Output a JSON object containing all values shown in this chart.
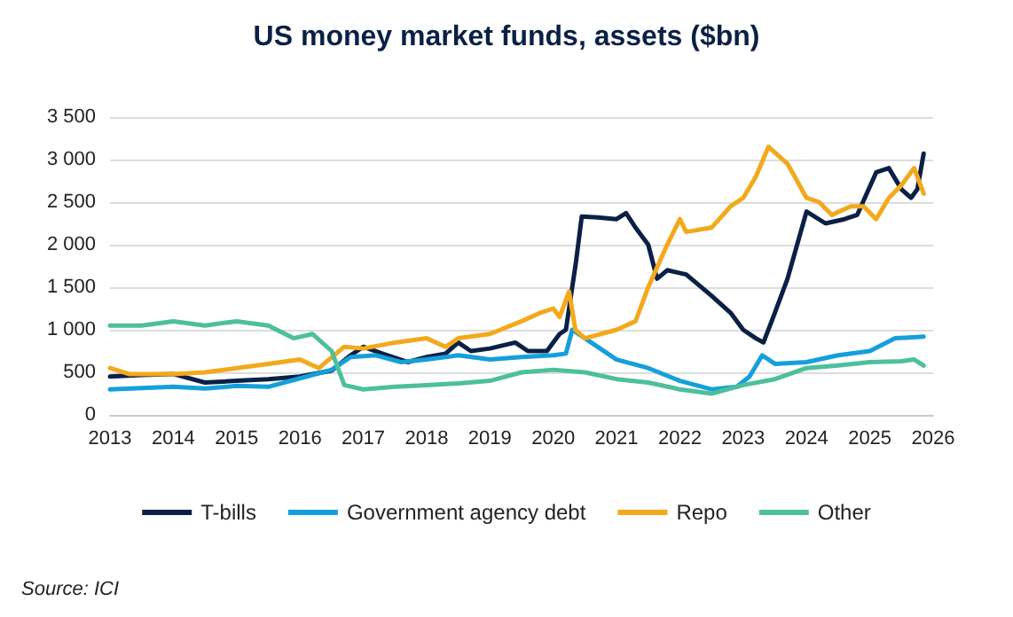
{
  "chart_data": {
    "type": "line",
    "title": "US money market funds, assets ($bn)",
    "xlim": [
      2013,
      2026
    ],
    "xticks": [
      2013,
      2014,
      2015,
      2016,
      2017,
      2018,
      2019,
      2020,
      2021,
      2022,
      2023,
      2024,
      2025,
      2026
    ],
    "ylim": [
      0,
      3500
    ],
    "yticks": [
      0,
      500,
      {
        "value": 1000,
        "label": "1 000"
      },
      {
        "value": 1500,
        "label": "1 500"
      },
      {
        "value": 2000,
        "label": "2 000"
      },
      {
        "value": 2500,
        "label": "2 500"
      },
      {
        "value": 3000,
        "label": "3 000"
      },
      {
        "value": 3500,
        "label": "3 500"
      }
    ],
    "grid": "y",
    "legend": "bottom",
    "marker": "none",
    "line_style": "solid",
    "annotations": [
      "Source: ICI"
    ],
    "series": [
      {
        "name": "T-bills",
        "color": "#0b2046",
        "x": [
          2013,
          2013.5,
          2014,
          2014.5,
          2015,
          2015.5,
          2016,
          2016.5,
          2016.8,
          2017,
          2017.3,
          2017.7,
          2018,
          2018.3,
          2018.5,
          2018.7,
          2019,
          2019.4,
          2019.6,
          2019.9,
          2020.1,
          2020.2,
          2020.36,
          2020.45,
          2020.7,
          2021,
          2021.15,
          2021.3,
          2021.5,
          2021.64,
          2021.8,
          2022.1,
          2022.5,
          2022.8,
          2023,
          2023.2,
          2023.32,
          2023.5,
          2023.7,
          2024,
          2024.3,
          2024.6,
          2024.8,
          2025.1,
          2025.3,
          2025.5,
          2025.65,
          2025.75,
          2025.85
        ],
        "values": [
          450,
          470,
          480,
          380,
          400,
          420,
          450,
          520,
          700,
          800,
          720,
          620,
          680,
          720,
          850,
          750,
          780,
          850,
          750,
          750,
          950,
          1000,
          1800,
          2330,
          2320,
          2300,
          2370,
          2200,
          2000,
          1600,
          1700,
          1650,
          1400,
          1200,
          1000,
          900,
          850,
          1200,
          1600,
          2390,
          2250,
          2300,
          2350,
          2850,
          2900,
          2650,
          2550,
          2650,
          3070
        ]
      },
      {
        "name": "Government agency debt",
        "color": "#159fdb",
        "x": [
          2013,
          2014,
          2014.5,
          2015,
          2015.5,
          2016,
          2016.5,
          2016.8,
          2017.2,
          2017.6,
          2018,
          2018.5,
          2019,
          2019.5,
          2020,
          2020.2,
          2020.3,
          2020.6,
          2021,
          2021.5,
          2022,
          2022.5,
          2022.9,
          2023.1,
          2023.3,
          2023.5,
          2024,
          2024.5,
          2025,
          2025.4,
          2025.85
        ],
        "values": [
          300,
          330,
          310,
          340,
          330,
          430,
          530,
          680,
          700,
          620,
          650,
          700,
          650,
          680,
          700,
          720,
          1000,
          850,
          650,
          550,
          400,
          300,
          330,
          450,
          700,
          600,
          620,
          700,
          750,
          900,
          920
        ]
      },
      {
        "name": "Repo",
        "color": "#f2a91c",
        "x": [
          2013,
          2013.3,
          2014,
          2014.5,
          2015,
          2015.5,
          2016,
          2016.3,
          2016.7,
          2017,
          2017.5,
          2018,
          2018.3,
          2018.5,
          2019,
          2019.5,
          2019.8,
          2020,
          2020.1,
          2020.25,
          2020.35,
          2020.5,
          2021,
          2021.3,
          2021.5,
          2021.8,
          2022,
          2022.1,
          2022.5,
          2022.8,
          2023,
          2023.2,
          2023.4,
          2023.7,
          2024,
          2024.2,
          2024.4,
          2024.7,
          2024.9,
          2025.1,
          2025.3,
          2025.5,
          2025.7,
          2025.85
        ],
        "values": [
          550,
          480,
          480,
          500,
          550,
          600,
          650,
          550,
          800,
          780,
          850,
          900,
          800,
          900,
          950,
          1100,
          1200,
          1250,
          1150,
          1450,
          1000,
          900,
          1000,
          1100,
          1500,
          2000,
          2300,
          2150,
          2200,
          2450,
          2550,
          2800,
          3150,
          2950,
          2550,
          2500,
          2350,
          2450,
          2450,
          2300,
          2550,
          2700,
          2900,
          2600
        ]
      },
      {
        "name": "Other",
        "color": "#4dbf9c",
        "x": [
          2013,
          2013.5,
          2014,
          2014.5,
          2015,
          2015.5,
          2015.9,
          2016.2,
          2016.5,
          2016.7,
          2017,
          2017.5,
          2018,
          2018.5,
          2019,
          2019.5,
          2020,
          2020.5,
          2021,
          2021.5,
          2022,
          2022.5,
          2023,
          2023.5,
          2024,
          2024.5,
          2025,
          2025.5,
          2025.7,
          2025.85
        ],
        "values": [
          1050,
          1050,
          1100,
          1050,
          1100,
          1050,
          900,
          950,
          750,
          350,
          300,
          330,
          350,
          370,
          400,
          500,
          530,
          500,
          420,
          380,
          300,
          250,
          350,
          420,
          550,
          580,
          620,
          630,
          650,
          580
        ]
      }
    ]
  }
}
